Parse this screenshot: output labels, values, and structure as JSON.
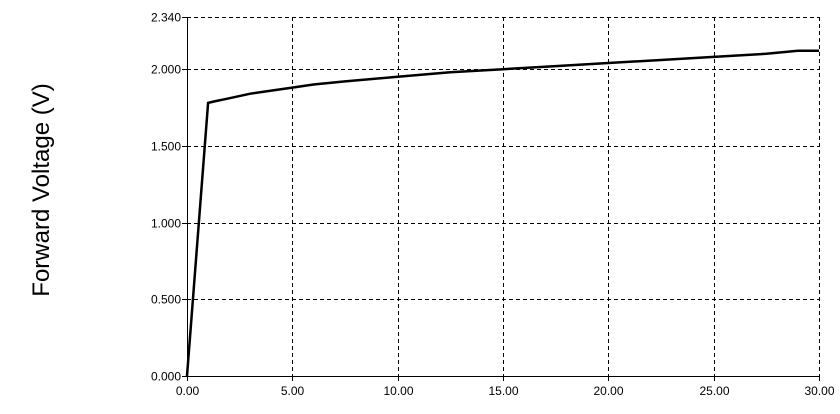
{
  "chart_data": {
    "type": "line",
    "title": "",
    "xlabel": "",
    "ylabel": "Forward Voltage (V)",
    "xlim": [
      0,
      30
    ],
    "ylim": [
      0,
      2.34
    ],
    "grid": true,
    "x_ticks": [
      0,
      5,
      10,
      15,
      20,
      25,
      30
    ],
    "x_tick_labels": [
      "0.00",
      "5.00",
      "10.00",
      "15.00",
      "20.00",
      "25.00",
      "30.00"
    ],
    "y_ticks": [
      0,
      0.5,
      1.0,
      1.5,
      2.0,
      2.34
    ],
    "y_tick_labels": [
      "0.000",
      "0.500",
      "1.000",
      "1.500",
      "2.000",
      "2.340"
    ],
    "series": [
      {
        "color": "#000000",
        "x": [
          0.0,
          1.0,
          1.3,
          2.0,
          3.0,
          4.0,
          5.0,
          6.0,
          7.5,
          10.0,
          12.5,
          15.0,
          17.5,
          20.0,
          22.5,
          25.0,
          27.5,
          29.0,
          30.0
        ],
        "y": [
          0.0,
          1.78,
          1.79,
          1.81,
          1.84,
          1.86,
          1.88,
          1.9,
          1.92,
          1.95,
          1.98,
          2.0,
          2.02,
          2.04,
          2.06,
          2.08,
          2.1,
          2.12,
          2.12
        ]
      }
    ]
  }
}
